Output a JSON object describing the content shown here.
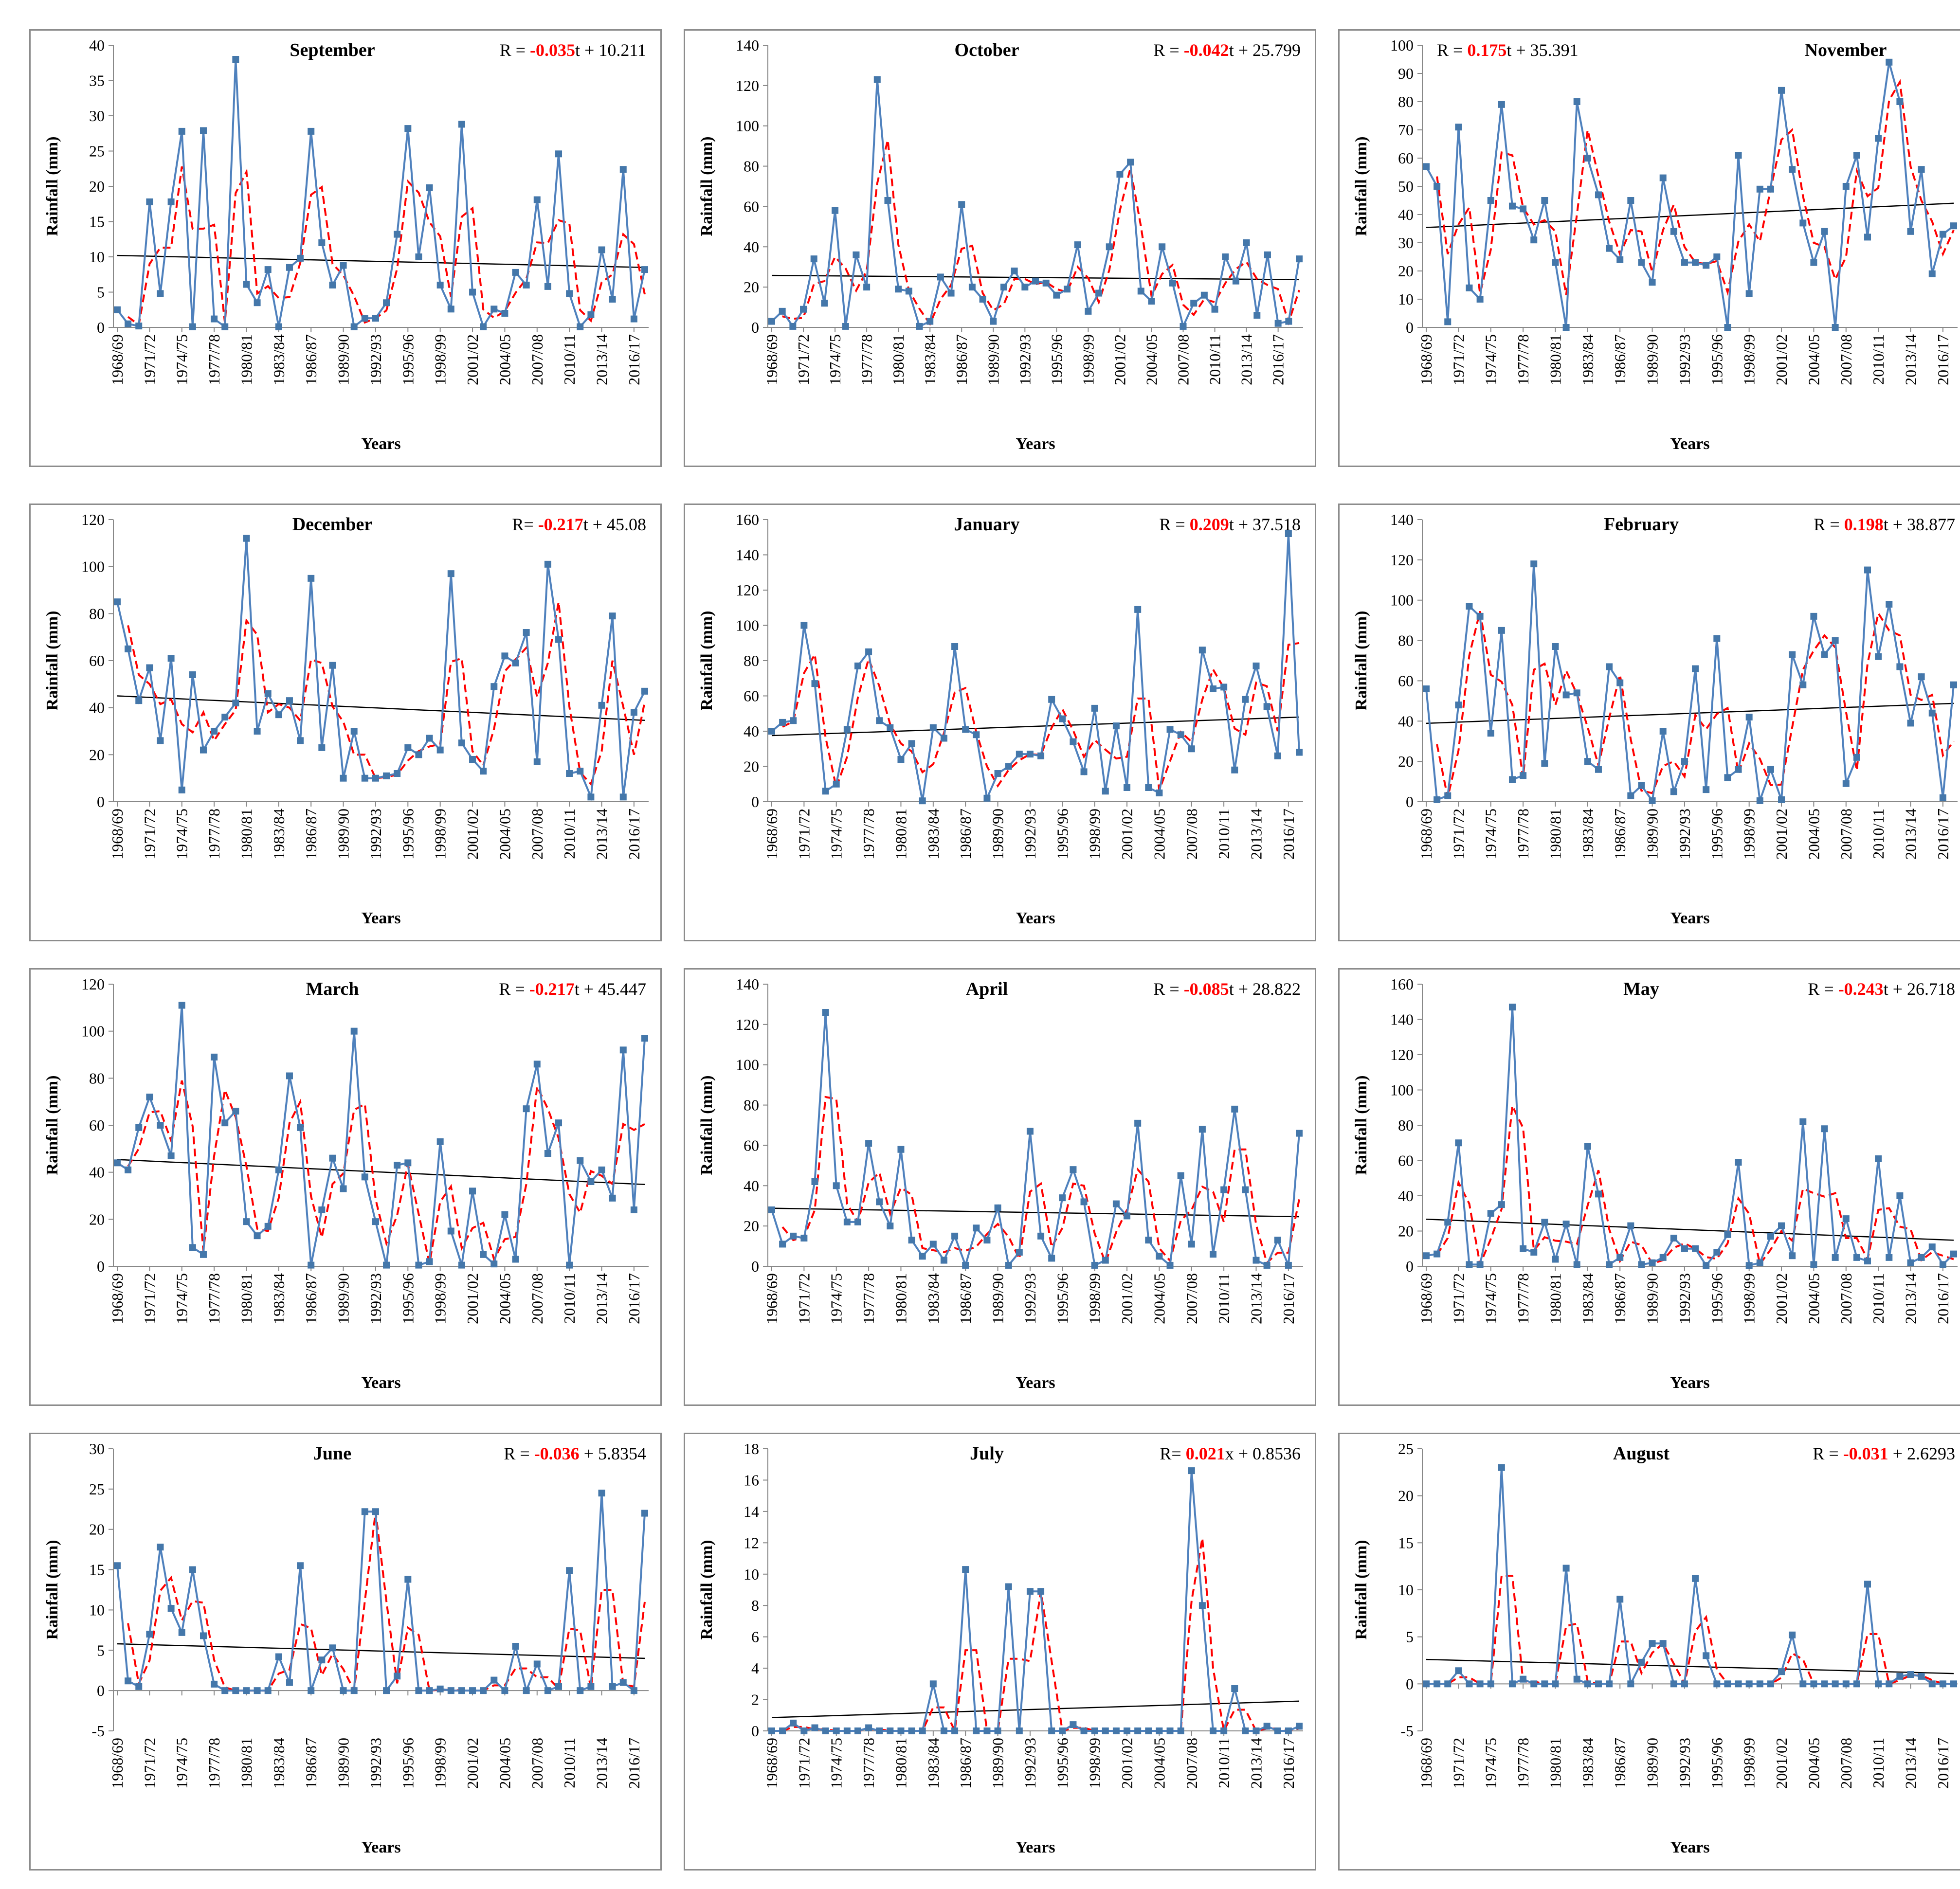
{
  "chart_data": [
    {
      "type": "line",
      "title": "September",
      "equation": {
        "prefix": "R = ",
        "coef": "-0.035",
        "suffix": "t + 10.211",
        "pos": "top-right"
      },
      "ylim": [
        0,
        40
      ],
      "yticks": [
        0,
        5,
        10,
        15,
        20,
        25,
        30,
        35,
        40
      ],
      "xlabel": "Years",
      "ylabel": "Rainfall (mm)",
      "x_start": 1968,
      "trend": [
        10.2,
        8.5
      ],
      "values": [
        2.5,
        0.5,
        0.2,
        17.8,
        4.8,
        17.8,
        27.8,
        0.1,
        27.9,
        1.2,
        0.1,
        38,
        6.1,
        3.5,
        8.2,
        0.1,
        8.5,
        9.8,
        27.8,
        12,
        6,
        8.8,
        0.1,
        1.3,
        1.3,
        3.5,
        13.2,
        28.2,
        10,
        19.8,
        6,
        2.6,
        28.8,
        5,
        0.1,
        2.6,
        2,
        7.8,
        6,
        18.1,
        5.8,
        24.6,
        4.8,
        0.1,
        1.8,
        11,
        4,
        22.4,
        1.2,
        8.2
      ]
    },
    {
      "type": "line",
      "title": "October",
      "equation": {
        "prefix": "R = ",
        "coef": "-0.042",
        "suffix": "t + 25.799",
        "pos": "top-right"
      },
      "ylim": [
        0,
        140
      ],
      "yticks": [
        0,
        20,
        40,
        60,
        80,
        100,
        120,
        140
      ],
      "xlabel": "Years",
      "ylabel": "Rainfall (mm)",
      "x_start": 1968,
      "trend": [
        25.8,
        23.7
      ],
      "values": [
        3,
        8,
        0.5,
        9,
        34,
        12,
        58,
        0.5,
        36,
        20,
        123,
        63,
        19,
        18,
        0.5,
        3,
        25,
        17,
        61,
        20,
        14,
        3,
        20,
        28,
        20,
        23,
        22,
        16,
        19,
        41,
        8,
        17,
        40,
        76,
        82,
        18,
        13,
        40,
        22,
        0.5,
        12,
        16,
        9,
        35,
        23,
        42,
        6,
        36,
        2,
        3,
        34
      ]
    },
    {
      "type": "line",
      "title": "November",
      "equation": {
        "prefix": "R = ",
        "coef": "0.175",
        "suffix": "t + 35.391",
        "pos": "top-left"
      },
      "ylim": [
        0,
        100
      ],
      "yticks": [
        0,
        10,
        20,
        30,
        40,
        50,
        60,
        70,
        80,
        90,
        100
      ],
      "xlabel": "Years",
      "ylabel": "Rainfall (mm)",
      "x_start": 1968,
      "trend": [
        35.4,
        44
      ],
      "values": [
        57,
        50,
        2,
        71,
        14,
        10,
        45,
        79,
        43,
        42,
        31,
        45,
        23,
        0,
        80,
        60,
        47,
        28,
        24,
        45,
        23,
        16,
        53,
        34,
        23,
        23,
        22,
        25,
        0,
        61,
        12,
        49,
        49,
        84,
        56,
        37,
        23,
        34,
        0,
        50,
        61,
        32,
        67,
        94,
        80,
        34,
        56,
        19,
        33,
        36
      ]
    },
    {
      "type": "line",
      "title": "December",
      "equation": {
        "prefix": "R= ",
        "coef": "-0.217",
        "suffix": "t + 45.08",
        "pos": "top-right"
      },
      "ylim": [
        0,
        120
      ],
      "yticks": [
        0,
        20,
        40,
        60,
        80,
        100,
        120
      ],
      "xlabel": "Years",
      "ylabel": "Rainfall (mm)",
      "x_start": 1968,
      "trend": [
        45,
        34.6
      ],
      "values": [
        85,
        65,
        43,
        57,
        26,
        61,
        5,
        54,
        22,
        30,
        36,
        42,
        112,
        30,
        46,
        37,
        43,
        26,
        95,
        23,
        58,
        10,
        30,
        10,
        10,
        11,
        12,
        23,
        20,
        27,
        22,
        97,
        25,
        18,
        13,
        49,
        62,
        59,
        72,
        17,
        101,
        69,
        12,
        13,
        2,
        41,
        79,
        2,
        38,
        47
      ]
    },
    {
      "type": "line",
      "title": "January",
      "equation": {
        "prefix": "R = ",
        "coef": "0.209",
        "suffix": "t + 37.518",
        "pos": "top-right"
      },
      "ylim": [
        0,
        160
      ],
      "yticks": [
        0,
        20,
        40,
        60,
        80,
        100,
        120,
        140,
        160
      ],
      "xlabel": "Years",
      "ylabel": "Rainfall (mm)",
      "x_start": 1968,
      "trend": [
        37.5,
        48
      ],
      "values": [
        40,
        45,
        46,
        100,
        67,
        6,
        10,
        41,
        77,
        85,
        46,
        42,
        24,
        33,
        0.5,
        42,
        36,
        88,
        41,
        38,
        2,
        16,
        20,
        27,
        27,
        26,
        58,
        47,
        34,
        17,
        53,
        6,
        43,
        8,
        109,
        8,
        5,
        41,
        38,
        30,
        86,
        64,
        65,
        18,
        58,
        77,
        54,
        26,
        152,
        28
      ]
    },
    {
      "type": "line",
      "title": "February",
      "equation": {
        "prefix": "R = ",
        "coef": "0.198",
        "suffix": "t + 38.877",
        "pos": "top-right"
      },
      "ylim": [
        0,
        140
      ],
      "yticks": [
        0,
        20,
        40,
        60,
        80,
        100,
        120,
        140
      ],
      "xlabel": "Years",
      "ylabel": "Rainfall (mm)",
      "x_start": 1968,
      "trend": [
        38.9,
        48.8
      ],
      "values": [
        56,
        1,
        3,
        48,
        97,
        92,
        34,
        85,
        11,
        13,
        118,
        19,
        77,
        53,
        54,
        20,
        16,
        67,
        59,
        3,
        8,
        0.5,
        35,
        5,
        20,
        66,
        6,
        81,
        12,
        16,
        42,
        0.5,
        16,
        1,
        73,
        58,
        92,
        73,
        80,
        9,
        22,
        115,
        72,
        98,
        67,
        39,
        62,
        44,
        2,
        58
      ]
    },
    {
      "type": "line",
      "title": "March",
      "equation": {
        "prefix": "R = ",
        "coef": "-0.217",
        "suffix": "t + 45.447",
        "pos": "top-right"
      },
      "ylim": [
        0,
        120
      ],
      "yticks": [
        0,
        20,
        40,
        60,
        80,
        100,
        120
      ],
      "xlabel": "Years",
      "ylabel": "Rainfall (mm)",
      "x_start": 1968,
      "trend": [
        45.4,
        34.8
      ],
      "values": [
        44,
        41,
        59,
        72,
        60,
        47,
        111,
        8,
        5,
        89,
        61,
        66,
        19,
        13,
        17,
        41,
        81,
        59,
        0.5,
        24,
        46,
        33,
        100,
        38,
        19,
        0.5,
        43,
        44,
        0.5,
        2,
        53,
        15,
        0.5,
        32,
        5,
        1,
        22,
        3,
        67,
        86,
        48,
        61,
        0.5,
        45,
        36,
        41,
        29,
        92,
        24,
        97
      ]
    },
    {
      "type": "line",
      "title": "April",
      "equation": {
        "prefix": "R = ",
        "coef": "-0.085",
        "suffix": "t + 28.822",
        "pos": "top-right"
      },
      "ylim": [
        0,
        140
      ],
      "yticks": [
        0,
        20,
        40,
        60,
        80,
        100,
        120,
        140
      ],
      "xlabel": "Years",
      "ylabel": "Rainfall (mm)",
      "x_start": 1968,
      "trend": [
        28.8,
        24.6
      ],
      "values": [
        28,
        11,
        15,
        14,
        42,
        126,
        40,
        22,
        22,
        61,
        32,
        20,
        58,
        13,
        5,
        11,
        3,
        15,
        0.5,
        19,
        13,
        29,
        0.5,
        7,
        67,
        15,
        4,
        34,
        48,
        32,
        0.5,
        3,
        31,
        25,
        71,
        13,
        5,
        0.5,
        45,
        11,
        68,
        6,
        38,
        78,
        38,
        3,
        0.5,
        13,
        0.5,
        66
      ]
    },
    {
      "type": "line",
      "title": "May",
      "equation": {
        "prefix": "R = ",
        "coef": "-0.243",
        "suffix": "t + 26.718",
        "pos": "top-right"
      },
      "ylim": [
        0,
        160
      ],
      "yticks": [
        0,
        20,
        40,
        60,
        80,
        100,
        120,
        140,
        160
      ],
      "xlabel": "Years",
      "ylabel": "Rainfall (mm)",
      "x_start": 1968,
      "trend": [
        26.7,
        14.8
      ],
      "values": [
        6,
        7,
        25,
        70,
        1,
        1,
        30,
        35,
        147,
        10,
        8,
        25,
        4,
        24,
        1,
        68,
        41,
        1,
        5,
        23,
        1,
        2,
        5,
        16,
        10,
        10,
        0.5,
        8,
        18,
        59,
        0.5,
        2,
        17,
        23,
        6,
        82,
        1,
        78,
        5,
        27,
        5,
        3,
        61,
        5,
        40,
        2,
        5,
        11,
        1,
        7
      ]
    },
    {
      "type": "line",
      "title": "June",
      "equation": {
        "prefix": "R = ",
        "coef": "-0.036",
        "suffix": " + 5.8354",
        "pos": "top-right"
      },
      "ylim": [
        -5,
        30
      ],
      "yticks": [
        -5,
        0,
        5,
        10,
        15,
        20,
        25,
        30
      ],
      "xlabel": "Years",
      "ylabel": "Rainfall (mm)",
      "x_start": 1968,
      "trend": [
        5.8,
        4
      ],
      "values": [
        15.5,
        1.2,
        0.5,
        7,
        17.8,
        10.2,
        7.2,
        15,
        6.8,
        0.8,
        0,
        0,
        0,
        0,
        0,
        4.2,
        1,
        15.5,
        0,
        3.8,
        5.3,
        0,
        0,
        22.2,
        22.2,
        0,
        1.8,
        13.8,
        0,
        0,
        0.2,
        0,
        0,
        0,
        0,
        1.3,
        0,
        5.5,
        0,
        3.3,
        0,
        0.5,
        14.9,
        0,
        0.5,
        24.5,
        0.5,
        1,
        0,
        22
      ]
    },
    {
      "type": "line",
      "title": "July",
      "equation": {
        "prefix": "R= ",
        "coef": "0.021",
        "suffix": "x + 0.8536",
        "pos": "top-right"
      },
      "ylim": [
        0,
        18
      ],
      "yticks": [
        0,
        2,
        4,
        6,
        8,
        10,
        12,
        14,
        16,
        18
      ],
      "xlabel": "Years",
      "ylabel": "Rainfall (mm)",
      "x_start": 1968,
      "trend": [
        0.85,
        1.9
      ],
      "values": [
        0,
        0,
        0.5,
        0,
        0.2,
        0,
        0,
        0,
        0,
        0.2,
        0,
        0,
        0,
        0,
        0,
        3,
        0,
        0,
        10.3,
        0,
        0,
        0,
        9.2,
        0,
        8.9,
        8.9,
        0,
        0,
        0.4,
        0,
        0,
        0,
        0,
        0,
        0,
        0,
        0,
        0,
        0,
        16.6,
        8,
        0,
        0,
        2.7,
        0,
        0,
        0.3,
        0,
        0,
        0.3
      ]
    },
    {
      "type": "line",
      "title": "August",
      "equation": {
        "prefix": "R = ",
        "coef": "-0.031",
        "suffix": " + 2.6293",
        "pos": "top-right"
      },
      "ylim": [
        -5,
        25
      ],
      "yticks": [
        -5,
        0,
        5,
        10,
        15,
        20,
        25
      ],
      "xlabel": "Years",
      "ylabel": "Rainfall (mm)",
      "x_start": 1968,
      "trend": [
        2.6,
        1.1
      ],
      "values": [
        0,
        0,
        0,
        1.4,
        0,
        0,
        0,
        23,
        0,
        0.5,
        0,
        0,
        0,
        12.3,
        0.5,
        0,
        0,
        0,
        9,
        0,
        2.3,
        4.3,
        4.3,
        0,
        0,
        11.2,
        3,
        0,
        0,
        0,
        0,
        0,
        0,
        1.3,
        5.2,
        0,
        0,
        0,
        0,
        0,
        0,
        10.6,
        0,
        0,
        0.8,
        1,
        0.8,
        0,
        0,
        0
      ]
    }
  ],
  "xtick_labels": [
    "1968/69",
    "1971/72",
    "1974/75",
    "1977/78",
    "1980/81",
    "1983/84",
    "1986/87",
    "1989/90",
    "1992/93",
    "1995/96",
    "1998/99",
    "2001/02",
    "2004/05",
    "2007/08",
    "2010/11",
    "2013/14",
    "2016/17"
  ],
  "colors": {
    "series": "#4f81bd",
    "marker": "#4477aa",
    "moving_avg": "#ff0000",
    "trend": "#000000",
    "equation_coef": "#ff0000"
  }
}
